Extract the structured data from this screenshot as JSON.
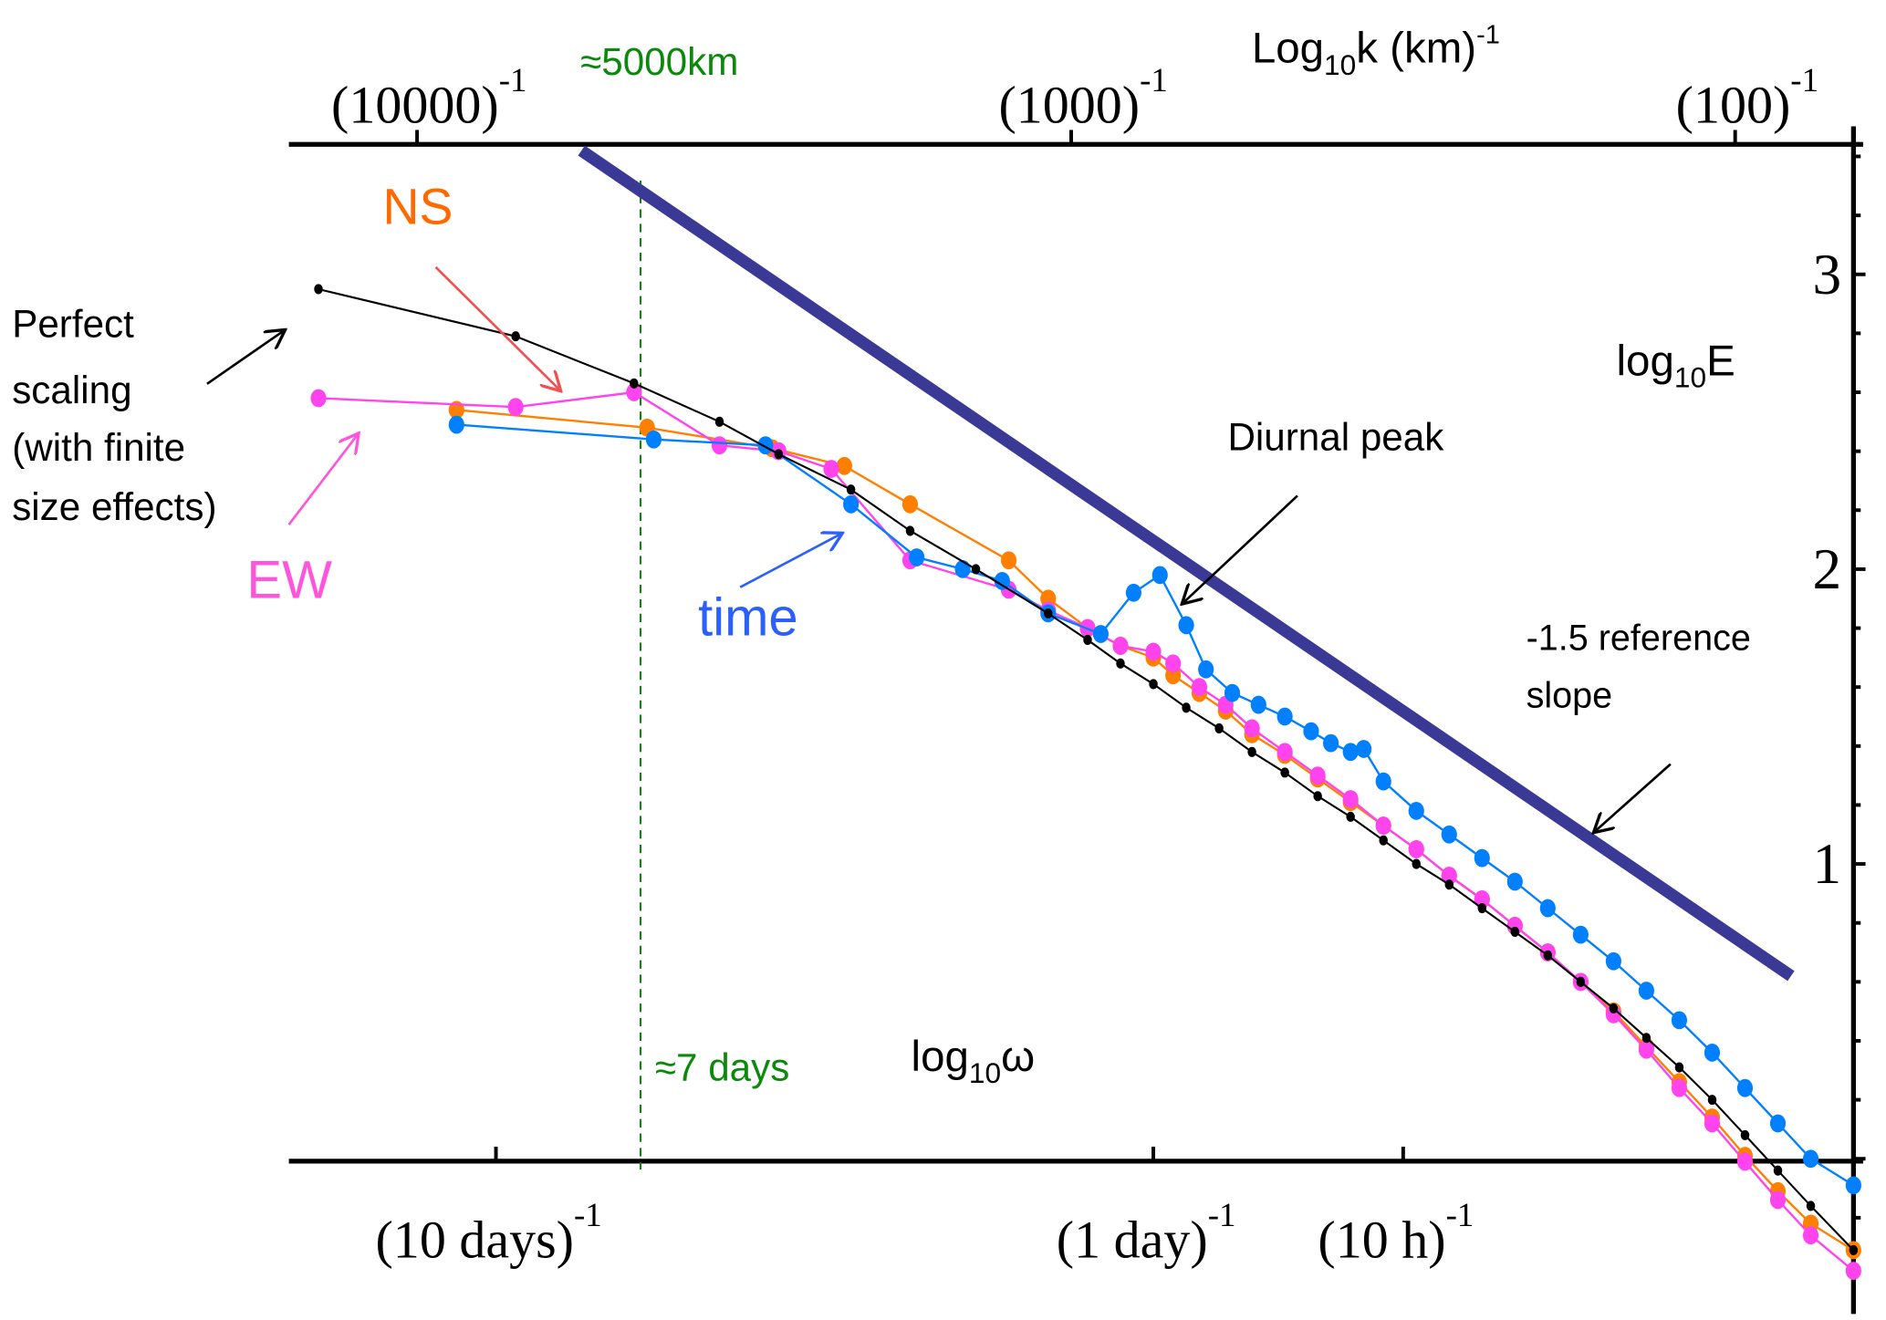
{
  "chart_data": {
    "type": "line",
    "title": "",
    "xlabel": "log10ω",
    "xlabel_parts": {
      "main": "log",
      "sub": "10",
      "tail": "ω"
    },
    "ylabel": "log10E",
    "ylabel_parts": {
      "main": "log",
      "sub": "10",
      "tail": "E"
    },
    "top_xlabel": "Log10k (km)-1",
    "top_xlabel_parts": {
      "main": "Log",
      "sub": "10",
      "tail": "k (km)",
      "sup": "-1"
    },
    "xlim": [
      -1.315,
      1.065
    ],
    "ylim": [
      -0.35,
      3.44
    ],
    "grid": false,
    "x_ticks": [
      {
        "value": -1.0,
        "label": "(10 days)",
        "sup": "-1"
      },
      {
        "value": 0.0,
        "label": "(1 day)",
        "sup": "-1"
      },
      {
        "value": 0.38,
        "label": "(10 h)",
        "sup": "-1"
      }
    ],
    "top_ticks": [
      {
        "value": -1.12,
        "label": "(10000)",
        "sup": "-1"
      },
      {
        "value": -0.125,
        "label": "(1000)",
        "sup": "-1"
      },
      {
        "value": 0.885,
        "label": "(100)",
        "sup": "-1"
      }
    ],
    "y_ticks": [
      {
        "value": 1,
        "label": "1"
      },
      {
        "value": 2,
        "label": "2"
      },
      {
        "value": 3,
        "label": "3"
      }
    ],
    "series": [
      {
        "name": "Perfect scaling (with finite size effects)",
        "color": "#000000",
        "marker": "small",
        "x": [
          -1.27,
          -0.97,
          -0.79,
          -0.66,
          -0.57,
          -0.46,
          -0.37,
          -0.27,
          -0.16,
          -0.1,
          -0.05,
          0.0,
          0.05,
          0.1,
          0.15,
          0.2,
          0.25,
          0.3,
          0.35,
          0.4,
          0.45,
          0.5,
          0.55,
          0.6,
          0.65,
          0.7,
          0.75,
          0.8,
          0.85,
          0.9,
          0.95,
          1.0,
          1.065
        ],
        "y": [
          2.95,
          2.79,
          2.63,
          2.5,
          2.39,
          2.27,
          2.13,
          2.0,
          1.85,
          1.76,
          1.68,
          1.61,
          1.53,
          1.46,
          1.38,
          1.31,
          1.23,
          1.16,
          1.08,
          1.0,
          0.93,
          0.85,
          0.77,
          0.69,
          0.6,
          0.51,
          0.41,
          0.31,
          0.2,
          0.08,
          -0.04,
          -0.16,
          -0.31
        ]
      },
      {
        "name": "EW",
        "color": "#ff44ee",
        "marker": "large",
        "x": [
          -1.27,
          -0.97,
          -0.79,
          -0.66,
          -0.57,
          -0.49,
          -0.37,
          -0.22,
          -0.16,
          -0.1,
          -0.05,
          0.0,
          0.03,
          0.07,
          0.11,
          0.15,
          0.2,
          0.25,
          0.3,
          0.35,
          0.4,
          0.45,
          0.5,
          0.55,
          0.6,
          0.65,
          0.7,
          0.75,
          0.8,
          0.85,
          0.9,
          0.95,
          1.0,
          1.065
        ],
        "y": [
          2.58,
          2.55,
          2.6,
          2.42,
          2.4,
          2.34,
          2.03,
          1.93,
          1.86,
          1.8,
          1.74,
          1.72,
          1.68,
          1.6,
          1.54,
          1.46,
          1.38,
          1.3,
          1.22,
          1.13,
          1.05,
          0.96,
          0.88,
          0.79,
          0.7,
          0.6,
          0.49,
          0.37,
          0.24,
          0.12,
          -0.01,
          -0.14,
          -0.26,
          -0.38
        ]
      },
      {
        "name": "NS",
        "color": "#ff8000",
        "marker": "large",
        "x": [
          -1.06,
          -0.77,
          -0.58,
          -0.47,
          -0.37,
          -0.22,
          -0.16,
          -0.1,
          -0.05,
          0.0,
          0.03,
          0.07,
          0.11,
          0.15,
          0.2,
          0.25,
          0.3,
          0.35,
          0.4,
          0.45,
          0.5,
          0.55,
          0.6,
          0.65,
          0.7,
          0.75,
          0.8,
          0.85,
          0.9,
          0.95,
          1.0,
          1.065
        ],
        "y": [
          2.54,
          2.48,
          2.41,
          2.35,
          2.22,
          2.03,
          1.9,
          1.8,
          1.74,
          1.7,
          1.64,
          1.58,
          1.52,
          1.44,
          1.37,
          1.29,
          1.21,
          1.13,
          1.05,
          0.96,
          0.88,
          0.79,
          0.7,
          0.6,
          0.5,
          0.38,
          0.26,
          0.14,
          0.01,
          -0.11,
          -0.22,
          -0.31
        ]
      },
      {
        "name": "time",
        "color": "#0080ff",
        "marker": "large",
        "x": [
          -1.06,
          -0.76,
          -0.59,
          -0.46,
          -0.36,
          -0.29,
          -0.23,
          -0.16,
          -0.08,
          -0.03,
          0.01,
          0.05,
          0.08,
          0.12,
          0.16,
          0.2,
          0.24,
          0.27,
          0.3,
          0.32,
          0.35,
          0.4,
          0.45,
          0.5,
          0.55,
          0.6,
          0.65,
          0.7,
          0.75,
          0.8,
          0.85,
          0.9,
          0.95,
          1.0,
          1.065
        ],
        "y": [
          2.49,
          2.44,
          2.42,
          2.22,
          2.04,
          2.0,
          1.96,
          1.85,
          1.78,
          1.92,
          1.98,
          1.81,
          1.66,
          1.58,
          1.54,
          1.5,
          1.45,
          1.41,
          1.38,
          1.39,
          1.28,
          1.18,
          1.1,
          1.02,
          0.94,
          0.85,
          0.76,
          0.67,
          0.57,
          0.47,
          0.36,
          0.24,
          0.12,
          0.0,
          -0.09
        ]
      },
      {
        "name": "-1.5 reference slope",
        "color": "#3a3a96",
        "marker": "none",
        "x": [
          -0.87,
          0.97
        ],
        "y": [
          3.42,
          0.62
        ]
      }
    ],
    "vertical_markers": [
      {
        "x": -0.78,
        "color": "#0a8a0a",
        "style": "dashed",
        "label_bottom": "≈7 days",
        "label_top": "≈5000km"
      }
    ],
    "annotations": [
      {
        "id": "ns",
        "text": "NS",
        "color": "#ff6a00"
      },
      {
        "id": "ew",
        "text": "EW",
        "color": "#ff55dd"
      },
      {
        "id": "time",
        "text": "time",
        "color": "#2b60ff"
      },
      {
        "id": "perfect",
        "lines": [
          "Perfect",
          "scaling",
          "(with finite",
          "size effects)"
        ],
        "color": "#000000"
      },
      {
        "id": "diurnal",
        "text": "Diurnal peak",
        "color": "#000000"
      },
      {
        "id": "refslope",
        "lines": [
          "-1.5 reference",
          "slope"
        ],
        "color": "#000000"
      }
    ]
  }
}
